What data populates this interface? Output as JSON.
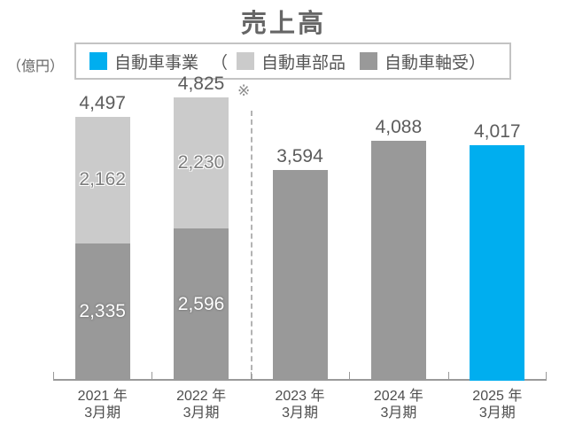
{
  "chart_data": {
    "type": "bar",
    "stacked": true,
    "grid": false,
    "title": "売上高",
    "unit_label": "（億円）",
    "note_marker": "※",
    "ylim": [
      0,
      4825
    ],
    "legend": {
      "position": "top",
      "paren_open": "（",
      "paren_close": "）",
      "items": [
        {
          "label": "自動車事業",
          "color": "#00AEEF"
        },
        {
          "label": "自動車部品",
          "color": "#CBCBCB"
        },
        {
          "label": "自動車軸受",
          "color": "#999999"
        }
      ]
    },
    "categories": [
      "2021年3月期",
      "2022年3月期",
      "2023年3月期",
      "2024年3月期",
      "2025年3月期"
    ],
    "category_lines": [
      [
        "2021 年",
        "3月期"
      ],
      [
        "2022 年",
        "3月期"
      ],
      [
        "2023 年",
        "3月期"
      ],
      [
        "2024 年",
        "3月期"
      ],
      [
        "2025 年",
        "3月期"
      ]
    ],
    "bars": [
      {
        "category": "2021年3月期",
        "total": 4497,
        "total_label": "4,497",
        "segments": [
          {
            "series": "自動車軸受",
            "value": 2335,
            "label": "2,335"
          },
          {
            "series": "自動車部品",
            "value": 2162,
            "label": "2,162"
          }
        ]
      },
      {
        "category": "2022年3月期",
        "total": 4825,
        "total_label": "4,825",
        "segments": [
          {
            "series": "自動車軸受",
            "value": 2596,
            "label": "2,596"
          },
          {
            "series": "自動車部品",
            "value": 2230,
            "label": "2,230"
          }
        ]
      },
      {
        "category": "2023年3月期",
        "total": 3594,
        "total_label": "3,594",
        "segments": [
          {
            "series": "自動車軸受",
            "value": 3594
          }
        ]
      },
      {
        "category": "2024年3月期",
        "total": 4088,
        "total_label": "4,088",
        "segments": [
          {
            "series": "自動車軸受",
            "value": 4088
          }
        ]
      },
      {
        "category": "2025年3月期",
        "total": 4017,
        "total_label": "4,017",
        "segments": [
          {
            "series": "自動車事業",
            "value": 4017
          }
        ]
      }
    ],
    "divider_after_index": 1
  }
}
